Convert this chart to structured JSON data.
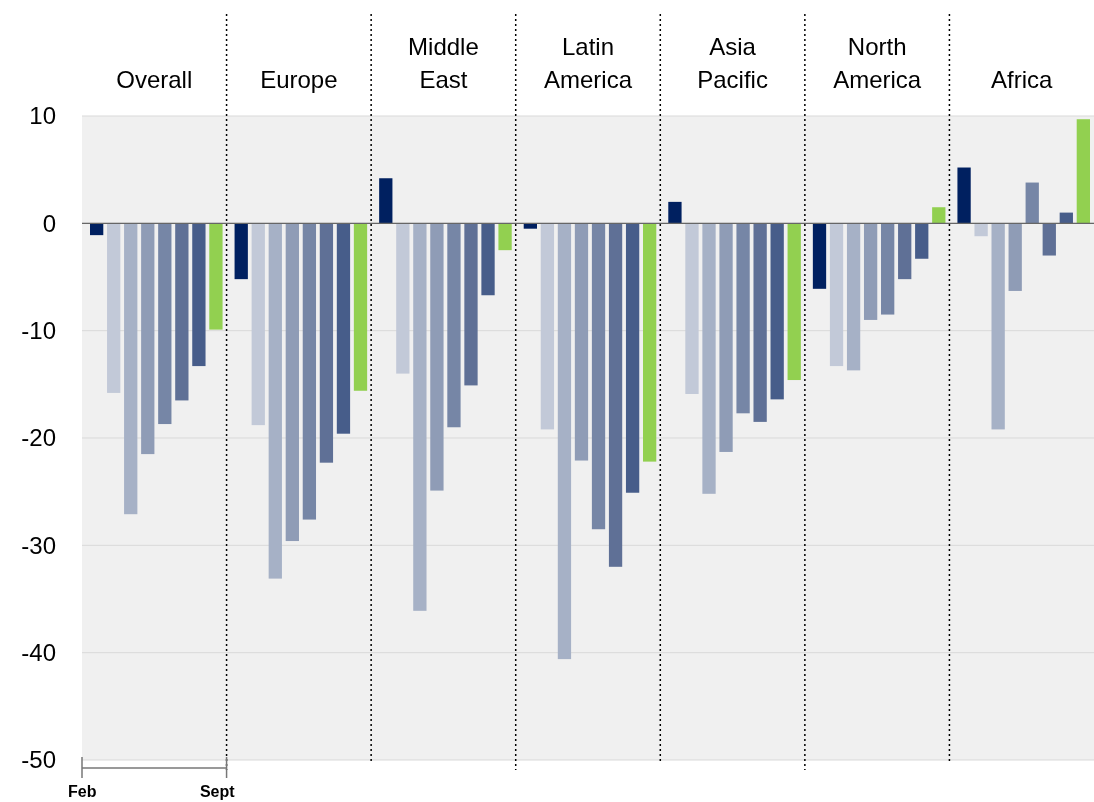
{
  "chart_data": {
    "type": "bar",
    "categories": [
      "Overall",
      "Europe",
      "Middle East",
      "Latin America",
      "Asia Pacific",
      "North America",
      "Africa"
    ],
    "series": [
      {
        "color": "#002060",
        "values": [
          -1.1,
          -5.2,
          4.2,
          -0.5,
          2.0,
          -6.1,
          5.2
        ]
      },
      {
        "color": "#c2c9d8",
        "values": [
          -15.8,
          -18.8,
          -14.0,
          -19.2,
          -15.9,
          -13.3,
          -1.2
        ]
      },
      {
        "color": "#a6b1c6",
        "values": [
          -27.1,
          -33.1,
          -36.1,
          -40.6,
          -25.2,
          -13.7,
          -19.2
        ]
      },
      {
        "color": "#8f9cb6",
        "values": [
          -21.5,
          -29.6,
          -24.9,
          -22.1,
          -21.3,
          -9.0,
          -6.3
        ]
      },
      {
        "color": "#7686a6",
        "values": [
          -18.7,
          -27.6,
          -19.0,
          -28.5,
          -17.7,
          -8.5,
          3.8
        ]
      },
      {
        "color": "#5f7096",
        "values": [
          -16.5,
          -22.3,
          -15.1,
          -32.0,
          -18.5,
          -5.2,
          -3.0
        ]
      },
      {
        "color": "#475d8a",
        "values": [
          -13.3,
          -19.6,
          -6.7,
          -25.1,
          -16.4,
          -3.3,
          1.0
        ]
      },
      {
        "color": "#92d050",
        "values": [
          -9.9,
          -15.6,
          -2.5,
          -22.2,
          -14.6,
          1.5,
          9.7
        ]
      }
    ],
    "ylim": [
      -50,
      10
    ],
    "yticks": [
      -50,
      -40,
      -30,
      -20,
      -10,
      0,
      10
    ],
    "grid": "y",
    "annotations": [
      "Feb",
      "Sept"
    ]
  }
}
